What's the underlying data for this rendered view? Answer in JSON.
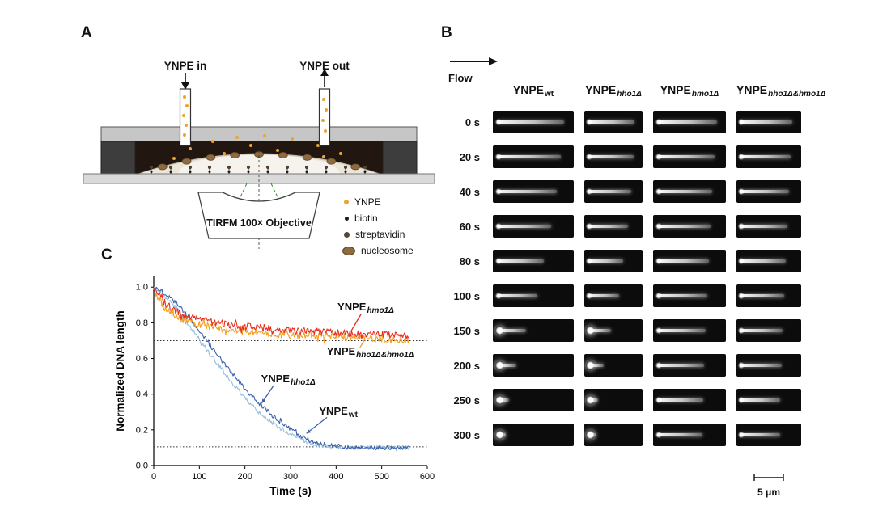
{
  "figure": {
    "panelA": {
      "label": "A",
      "inlet_label": "YNPE in",
      "outlet_label": "YNPE out",
      "objective_label": "TIRFM 100× Objective",
      "legend": [
        {
          "name": "YNPE",
          "color": "#eda42e"
        },
        {
          "name": "biotin",
          "color": "#1a1a1a"
        },
        {
          "name": "streptavidin",
          "color": "#55463a"
        },
        {
          "name": "nucleosome",
          "color": "#8d6a3f"
        }
      ]
    },
    "panelB": {
      "label": "B",
      "flow_label": "Flow",
      "scale_bar": "5 μm",
      "columns": [
        {
          "base": "YNPE",
          "sub": "wt",
          "italic": false
        },
        {
          "base": "YNPE",
          "sub": "hho1Δ",
          "italic": true
        },
        {
          "base": "YNPE",
          "sub": "hmo1Δ",
          "italic": true
        },
        {
          "base": "YNPE",
          "sub": "hho1Δ&hmo1Δ",
          "italic": true
        }
      ],
      "rows": [
        {
          "time": "0 s",
          "lengths": [
            0.97,
            0.95,
            0.96,
            0.95
          ]
        },
        {
          "time": "20 s",
          "lengths": [
            0.92,
            0.92,
            0.92,
            0.92
          ]
        },
        {
          "time": "40 s",
          "lengths": [
            0.86,
            0.88,
            0.89,
            0.89
          ]
        },
        {
          "time": "60 s",
          "lengths": [
            0.78,
            0.81,
            0.86,
            0.86
          ]
        },
        {
          "time": "80 s",
          "lengths": [
            0.68,
            0.72,
            0.83,
            0.83
          ]
        },
        {
          "time": "100 s",
          "lengths": [
            0.58,
            0.63,
            0.81,
            0.8
          ]
        },
        {
          "time": "150 s",
          "lengths": [
            0.42,
            0.47,
            0.78,
            0.77
          ]
        },
        {
          "time": "200 s",
          "lengths": [
            0.28,
            0.33,
            0.76,
            0.75
          ]
        },
        {
          "time": "250 s",
          "lengths": [
            0.18,
            0.22,
            0.74,
            0.73
          ]
        },
        {
          "time": "300 s",
          "lengths": [
            0.13,
            0.16,
            0.73,
            0.72
          ]
        }
      ]
    },
    "panelC": {
      "label": "C"
    }
  },
  "chart_data": {
    "type": "line",
    "title": "",
    "xlabel": "Time (s)",
    "ylabel": "Normalized DNA length",
    "xlim": [
      0,
      600
    ],
    "ylim": [
      0,
      1.06
    ],
    "xticks": [
      0,
      100,
      200,
      300,
      400,
      500,
      600
    ],
    "yticks": [
      0.0,
      0.2,
      0.4,
      0.6,
      0.8,
      1.0
    ],
    "grid": false,
    "reference_lines": [
      0.7,
      0.105
    ],
    "series": [
      {
        "name": "YNPE_wt",
        "color": "#93bedf",
        "x": [
          0,
          20,
          50,
          80,
          110,
          140,
          170,
          200,
          230,
          260,
          290,
          320,
          350,
          380,
          420,
          470,
          520,
          560
        ],
        "y": [
          1.0,
          0.96,
          0.88,
          0.78,
          0.67,
          0.57,
          0.47,
          0.38,
          0.3,
          0.24,
          0.19,
          0.15,
          0.12,
          0.11,
          0.1,
          0.1,
          0.1,
          0.1
        ]
      },
      {
        "name": "YNPE_hho1Δ",
        "color": "#3d62a8",
        "x": [
          0,
          20,
          50,
          80,
          110,
          140,
          170,
          200,
          230,
          260,
          290,
          320,
          350,
          380,
          420,
          470,
          520,
          560
        ],
        "y": [
          1.0,
          0.97,
          0.91,
          0.82,
          0.72,
          0.62,
          0.52,
          0.43,
          0.35,
          0.28,
          0.22,
          0.17,
          0.13,
          0.115,
          0.105,
          0.1,
          0.1,
          0.1
        ]
      },
      {
        "name": "YNPE_hho1Δ&hmo1Δ",
        "color": "#f79c1d",
        "x": [
          0,
          10,
          25,
          45,
          70,
          100,
          140,
          190,
          250,
          320,
          400,
          480,
          560
        ],
        "y": [
          0.99,
          0.94,
          0.88,
          0.84,
          0.81,
          0.79,
          0.77,
          0.755,
          0.74,
          0.73,
          0.72,
          0.71,
          0.7
        ]
      },
      {
        "name": "YNPE_hmo1Δ",
        "color": "#e5301f",
        "x": [
          0,
          10,
          25,
          45,
          70,
          100,
          140,
          190,
          250,
          320,
          400,
          480,
          560
        ],
        "y": [
          1.0,
          0.96,
          0.91,
          0.87,
          0.84,
          0.82,
          0.8,
          0.78,
          0.77,
          0.755,
          0.745,
          0.735,
          0.73
        ]
      }
    ],
    "annotations": [
      {
        "base": "YNPE",
        "sub": "hmo1Δ",
        "italic": true,
        "color": "#e5301f",
        "label_at": [
          465,
          0.885
        ],
        "pointer": [
          [
            455,
            0.85
          ],
          [
            432,
            0.75
          ]
        ],
        "arrow": false
      },
      {
        "base": "YNPE",
        "sub": "hho1Δ&hmo1Δ",
        "italic": true,
        "color": "#f79c1d",
        "label_at": [
          475,
          0.635
        ],
        "pointer": [
          [
            452,
            0.66
          ],
          [
            464,
            0.712
          ]
        ],
        "arrow": false
      },
      {
        "base": "YNPE",
        "sub": "hho1Δ",
        "italic": true,
        "color": "#3d62a8",
        "label_at": [
          295,
          0.48
        ],
        "pointer": [
          [
            262,
            0.445
          ],
          [
            237,
            0.35
          ]
        ],
        "arrow": true
      },
      {
        "base": "YNPE",
        "sub": "wt",
        "italic": false,
        "color": "#3d62a8",
        "label_at": [
          405,
          0.3
        ],
        "pointer": [
          [
            380,
            0.27
          ],
          [
            335,
            0.18
          ]
        ],
        "arrow": true
      }
    ]
  }
}
